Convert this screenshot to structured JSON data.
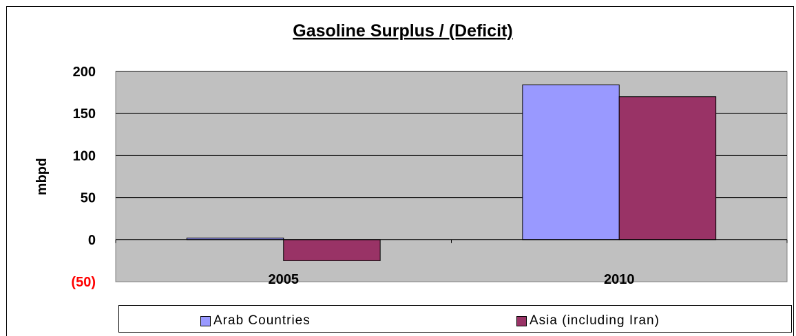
{
  "chart_data": {
    "type": "bar",
    "title": "Gasoline Surplus / (Deficit)",
    "xlabel": "",
    "ylabel": "mbpd",
    "categories": [
      "2005",
      "2010"
    ],
    "ylim": [
      -50,
      200
    ],
    "yticks": [
      200,
      150,
      100,
      50,
      0,
      -50
    ],
    "ytick_labels": [
      "200",
      "150",
      "100",
      "50",
      "0",
      "(50)"
    ],
    "grid": true,
    "legend_position": "bottom",
    "series": [
      {
        "name": "Arab Countries",
        "values": [
          2,
          184
        ],
        "color": "#9999ff"
      },
      {
        "name": "Asia (including Iran)",
        "values": [
          -25,
          170
        ],
        "color": "#993366"
      }
    ],
    "colors": {
      "plot_background": "#c0c0c0",
      "negative_tick_label": "#ff0000"
    }
  }
}
